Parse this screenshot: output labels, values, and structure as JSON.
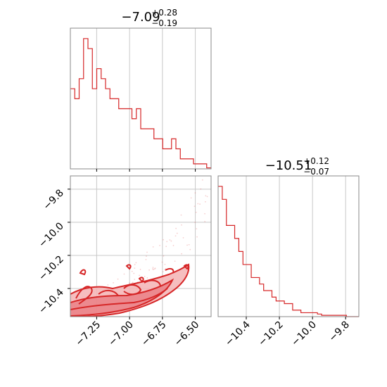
{
  "chart_data": [
    {
      "panel": "marginal-x",
      "type": "histogram",
      "title": {
        "value": "−7.09",
        "plus": "+0.28",
        "minus": "−0.19"
      },
      "xlim": [
        -7.45,
        -6.38
      ],
      "grid": true,
      "color": "#d62728",
      "bins": {
        "start": -7.45,
        "end": -6.38,
        "counts": [
          8,
          7,
          9,
          13,
          12,
          8,
          10,
          9,
          8,
          7,
          7,
          6,
          6,
          6,
          5,
          6,
          4,
          4,
          4,
          3,
          3,
          2,
          2,
          3,
          2,
          1,
          1,
          1,
          0.5,
          0.5,
          0.5,
          0.1
        ]
      }
    },
    {
      "panel": "joint",
      "type": "contour-scatter",
      "xlim": [
        -7.45,
        -6.38
      ],
      "ylim": [
        -10.57,
        -9.72
      ],
      "xticks": [
        "−7.25",
        "−7.00",
        "−6.75",
        "−6.50"
      ],
      "xtick_values": [
        -7.25,
        -7.0,
        -6.75,
        -6.5
      ],
      "yticks": [
        "−9.8",
        "−10.0",
        "−10.2",
        "−10.4"
      ],
      "ytick_values": [
        -9.8,
        -10.0,
        -10.2,
        -10.4
      ],
      "grid": true,
      "color": "#d62728",
      "fill_color": "#f4b3b4"
    },
    {
      "panel": "marginal-y",
      "type": "histogram",
      "title": {
        "value": "−10.51",
        "plus": "+0.12",
        "minus": "−0.07"
      },
      "xlim": [
        -10.57,
        -9.72
      ],
      "xticks": [
        "−10.4",
        "−10.2",
        "−10.0",
        "−9.8"
      ],
      "xtick_values": [
        -10.4,
        -10.2,
        -10.0,
        -9.8
      ],
      "grid": true,
      "color": "#d62728",
      "bins": {
        "start": -10.57,
        "end": -9.72,
        "counts": [
          10,
          9,
          7,
          7,
          6,
          5,
          4,
          4,
          3,
          3,
          2.5,
          2,
          2,
          1.5,
          1.2,
          1.2,
          1,
          1,
          0.5,
          0.5,
          0.3,
          0.3,
          0.3,
          0.3,
          0.2,
          0.1,
          0.1,
          0.1,
          0.1,
          0.1,
          0.1,
          0,
          0,
          0
        ]
      }
    }
  ]
}
